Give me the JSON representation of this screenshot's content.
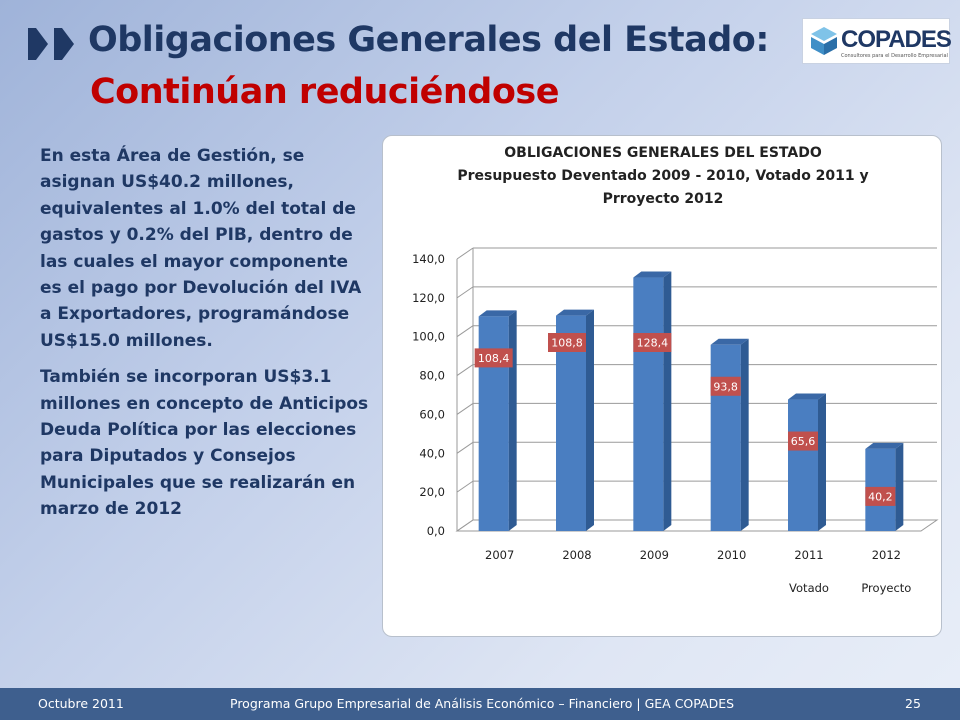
{
  "slide": {
    "title_line1": "Obligaciones Generales del Estado:",
    "title_line2": "Continúan reduciéndose",
    "logo_text": "COPADES",
    "logo_subtext": "Consultores para el Desarrollo Empresarial",
    "paragraphs": [
      "En esta Área de Gestión, se asignan US$40.2 millones, equivalentes al 1.0% del total de gastos y 0.2% del PIB, dentro de las cuales el mayor componente es el pago por Devolución del IVA a Exportadores, programándose US$15.0 millones.",
      "También se incorporan US$3.1 millones en concepto de Anticipos Deuda Política por las elecciones para Diputados y Consejos Municipales que se realizarán en marzo de 2012"
    ],
    "colors": {
      "title_blue": "#1f3864",
      "title_red": "#c00000",
      "bar": "#4a7ec1",
      "label_bg": "#c0504d",
      "footer": "#3e5f8e"
    }
  },
  "chart_data": {
    "type": "bar",
    "title_lines": [
      "OBLIGACIONES GENERALES DEL ESTADO",
      "Presupuesto Deventado 2009 - 2010, Votado 2011 y",
      "Prroyecto 2012"
    ],
    "categories": [
      "2007",
      "2008",
      "2009",
      "2010",
      "2011",
      "2012"
    ],
    "category_sublabels": [
      "",
      "",
      "",
      "",
      "Votado",
      "Proyecto"
    ],
    "values": [
      108.4,
      108.8,
      128.4,
      93.8,
      65.6,
      40.2
    ],
    "data_labels": [
      "108,4",
      "108,8",
      "128,4",
      "93,8",
      "65,6",
      "40,2"
    ],
    "yticks": [
      "0,0",
      "20,0",
      "40,0",
      "60,0",
      "80,0",
      "100,0",
      "120,0",
      "140,0"
    ],
    "ylim": [
      0,
      140
    ],
    "grid": true,
    "style": "3d-column"
  },
  "footer": {
    "left": "Octubre 2011",
    "center": "Programa Grupo Empresarial de Análisis Económico – Financiero | GEA COPADES",
    "right": "25"
  }
}
